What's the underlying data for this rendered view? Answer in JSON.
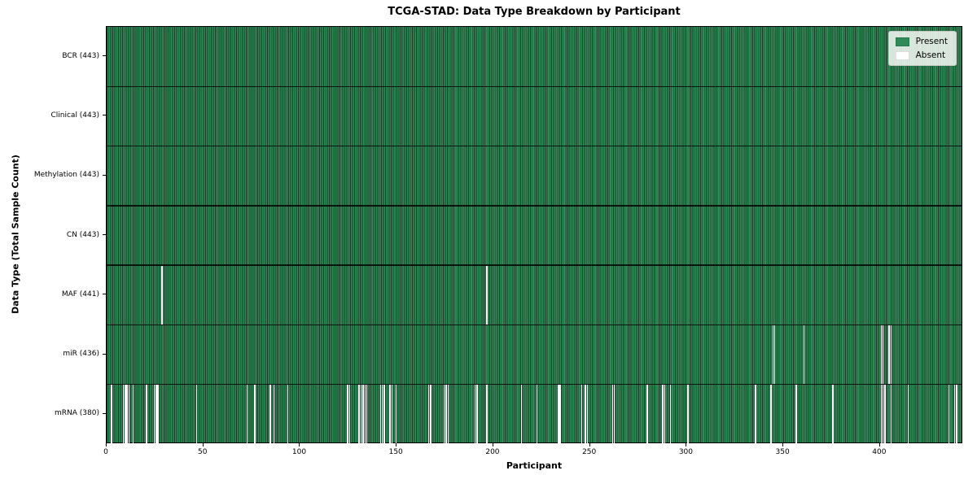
{
  "colors": {
    "present": "#2e8b57",
    "absent": "#ffffff",
    "bar_edge": "#163a23",
    "axis": "#000000",
    "legend_bg": "#eaeee8"
  },
  "chart_data": {
    "type": "heatmap",
    "title": "TCGA-STAD: Data Type Breakdown by Participant",
    "xlabel": "Participant",
    "ylabel": "Data Type (Total Sample Count)",
    "n_participants": 443,
    "x_ticks": [
      0,
      50,
      100,
      150,
      200,
      250,
      300,
      350,
      400
    ],
    "legend": [
      {
        "label": "Present",
        "color": "#2e8b57"
      },
      {
        "label": "Absent",
        "color": "#ffffff"
      }
    ],
    "legend_position": "upper right",
    "grid": false,
    "value_encoding": {
      "present": 1,
      "absent": 0
    },
    "rows": [
      {
        "name": "BCR",
        "label": "BCR (443)",
        "present_count": 443,
        "absent_count": 0,
        "absent_participants": []
      },
      {
        "name": "Clinical",
        "label": "Clinical (443)",
        "present_count": 443,
        "absent_count": 0,
        "absent_participants": []
      },
      {
        "name": "Methylation",
        "label": "Methylation (443)",
        "present_count": 443,
        "absent_count": 0,
        "absent_participants": []
      },
      {
        "name": "CN",
        "label": "CN (443)",
        "present_count": 443,
        "absent_count": 0,
        "absent_participants": []
      },
      {
        "name": "MAF",
        "label": "MAF (441)",
        "present_count": 441,
        "absent_count": 2,
        "absent_participants": [
          28,
          196
        ]
      },
      {
        "name": "miR",
        "label": "miR (436)",
        "present_count": 436,
        "absent_count": 7,
        "absent_participants": [
          344,
          345,
          360,
          400,
          401,
          404,
          405
        ]
      },
      {
        "name": "mRNA",
        "label": "mRNA (380)",
        "present_count": 380,
        "absent_count": 63,
        "absent_participants": [
          2,
          8,
          9,
          10,
          11,
          13,
          20,
          24,
          25,
          26,
          46,
          72,
          76,
          84,
          86,
          93,
          124,
          125,
          130,
          131,
          132,
          133,
          134,
          141,
          142,
          143,
          146,
          147,
          149,
          166,
          167,
          174,
          175,
          176,
          190,
          191,
          196,
          214,
          222,
          233,
          234,
          245,
          247,
          248,
          261,
          262,
          279,
          287,
          288,
          291,
          300,
          335,
          343,
          356,
          375,
          400,
          401,
          402,
          405,
          414,
          435,
          438,
          439
        ]
      }
    ]
  }
}
